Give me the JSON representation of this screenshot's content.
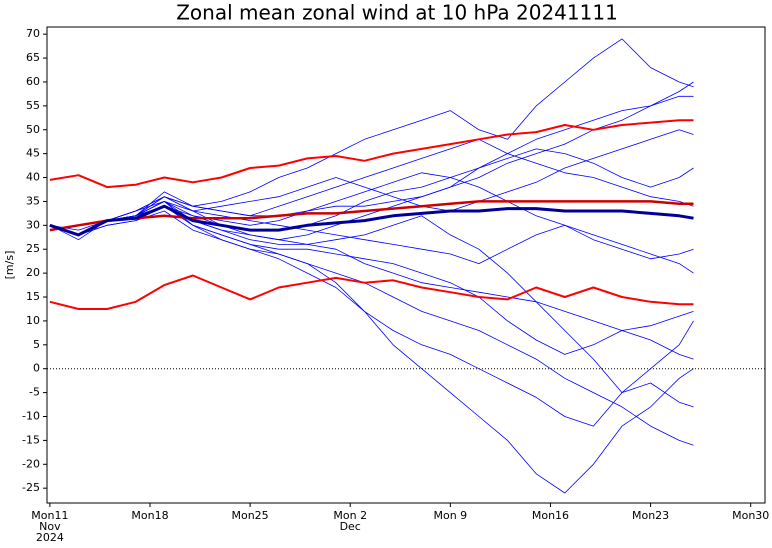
{
  "chart_data": {
    "type": "line",
    "title": "Zonal mean zonal wind at 10 hPa 20241111",
    "ylabel": "[m/s]",
    "x": [
      0,
      2,
      4,
      6,
      8,
      10,
      12,
      14,
      16,
      18,
      20,
      22,
      24,
      26,
      28,
      30,
      32,
      34,
      36,
      38,
      40,
      42,
      44,
      45
    ],
    "xlim": [
      -0.2,
      50
    ],
    "xticks": [
      {
        "value": 0,
        "label": [
          "Mon11",
          "Nov",
          "2024"
        ]
      },
      {
        "value": 7,
        "label": [
          "Mon18"
        ]
      },
      {
        "value": 14,
        "label": [
          "Mon25"
        ]
      },
      {
        "value": 21,
        "label": [
          "Mon 2",
          "Dec"
        ]
      },
      {
        "value": 28,
        "label": [
          "Mon 9"
        ]
      },
      {
        "value": 35,
        "label": [
          "Mon16"
        ]
      },
      {
        "value": 42,
        "label": [
          "Mon23"
        ]
      },
      {
        "value": 49,
        "label": [
          "Mon30"
        ]
      }
    ],
    "ylim": [
      -28.1,
      71.5
    ],
    "yticks": [
      -25,
      -20,
      -15,
      -10,
      -5,
      0,
      5,
      10,
      15,
      20,
      25,
      30,
      35,
      40,
      45,
      50,
      55,
      60,
      65,
      70
    ],
    "hline": 0,
    "series": [
      {
        "color": "#0000ff",
        "linewidth": 0.8,
        "values": [
          30,
          28,
          31,
          32,
          36,
          33,
          30,
          28,
          27,
          28,
          30,
          32,
          34,
          36,
          38,
          40,
          43,
          45,
          47,
          50,
          52,
          55,
          58,
          60
        ]
      },
      {
        "color": "#0000ff",
        "linewidth": 0.8,
        "values": [
          30,
          27,
          31,
          33,
          35,
          30,
          27,
          25,
          24,
          22,
          20,
          18,
          15,
          12,
          10,
          8,
          5,
          2,
          -2,
          -5,
          -8,
          -12,
          -15,
          -16
        ]
      },
      {
        "color": "#0000ff",
        "linewidth": 0.8,
        "values": [
          30,
          28,
          31,
          32,
          37,
          34,
          33,
          32,
          34,
          36,
          38,
          40,
          42,
          44,
          46,
          48,
          45,
          43,
          41,
          40,
          38,
          36,
          35,
          34
        ]
      },
      {
        "color": "#0000ff",
        "linewidth": 0.8,
        "values": [
          30,
          28,
          30,
          31,
          34,
          30,
          28,
          26,
          24,
          22,
          18,
          12,
          5,
          0,
          -5,
          -10,
          -15,
          -22,
          -26,
          -20,
          -12,
          -8,
          -2,
          0
        ]
      },
      {
        "color": "#0000ff",
        "linewidth": 0.8,
        "values": [
          30,
          29,
          31,
          33,
          36,
          34,
          35,
          37,
          40,
          42,
          45,
          48,
          50,
          52,
          54,
          50,
          48,
          55,
          60,
          65,
          69,
          63,
          60,
          59
        ]
      },
      {
        "color": "#0000ff",
        "linewidth": 0.8,
        "values": [
          30,
          28,
          31,
          32,
          35,
          31,
          29,
          28,
          27,
          26,
          25,
          22,
          20,
          18,
          17,
          16,
          15,
          14,
          12,
          10,
          8,
          9,
          11,
          12
        ]
      },
      {
        "color": "#0000ff",
        "linewidth": 0.8,
        "values": [
          30,
          28,
          30,
          31,
          33,
          29,
          27,
          25,
          23,
          20,
          17,
          12,
          8,
          5,
          3,
          0,
          -3,
          -6,
          -10,
          -12,
          -5,
          0,
          5,
          10
        ]
      },
      {
        "color": "#0000ff",
        "linewidth": 0.8,
        "values": [
          30,
          28,
          31,
          32,
          34,
          32,
          31,
          30,
          31,
          33,
          35,
          37,
          39,
          41,
          40,
          42,
          44,
          46,
          45,
          43,
          40,
          38,
          40,
          42
        ]
      },
      {
        "color": "#0000ff",
        "linewidth": 0.8,
        "values": [
          30,
          28,
          31,
          32,
          35,
          33,
          32,
          31,
          30,
          29,
          28,
          27,
          26,
          25,
          24,
          22,
          25,
          28,
          30,
          28,
          26,
          24,
          22,
          20
        ]
      },
      {
        "color": "#0000ff",
        "linewidth": 0.8,
        "values": [
          30,
          28,
          31,
          32,
          36,
          33,
          34,
          35,
          36,
          38,
          40,
          38,
          36,
          34,
          33,
          35,
          37,
          39,
          42,
          44,
          46,
          48,
          50,
          49
        ]
      },
      {
        "color": "#0000ff",
        "linewidth": 0.8,
        "values": [
          30,
          28,
          31,
          32,
          34,
          30,
          28,
          26,
          25,
          25,
          24,
          23,
          22,
          20,
          18,
          15,
          10,
          6,
          3,
          5,
          8,
          6,
          3,
          2
        ]
      },
      {
        "color": "#0000ff",
        "linewidth": 0.8,
        "values": [
          30,
          28,
          31,
          32,
          35,
          32,
          30,
          29,
          29,
          30,
          32,
          35,
          37,
          38,
          40,
          38,
          35,
          32,
          30,
          27,
          25,
          23,
          24,
          25
        ]
      },
      {
        "color": "#0000ff",
        "linewidth": 0.8,
        "values": [
          30,
          28,
          31,
          33,
          36,
          34,
          33,
          32,
          32,
          33,
          34,
          34,
          35,
          36,
          38,
          42,
          45,
          48,
          50,
          52,
          54,
          55,
          57,
          57
        ]
      },
      {
        "color": "#0000ff",
        "linewidth": 0.8,
        "values": [
          30,
          28,
          31,
          32,
          34,
          31,
          29,
          27,
          26,
          26,
          27,
          28,
          30,
          32,
          28,
          25,
          20,
          14,
          8,
          2,
          -5,
          -3,
          -7,
          -8
        ]
      },
      {
        "color": "#ff0000",
        "linewidth": 2,
        "values": [
          39.5,
          40.5,
          38,
          38.5,
          40,
          39,
          40,
          42,
          42.5,
          44,
          44.5,
          43.5,
          45,
          46,
          47,
          48,
          49,
          49.5,
          51,
          50,
          51,
          51.5,
          52,
          52
        ]
      },
      {
        "color": "#cc0000",
        "linewidth": 2.5,
        "values": [
          29,
          30,
          31,
          31.5,
          32,
          31.5,
          31.5,
          31.5,
          32,
          32.5,
          32.5,
          33,
          33.5,
          34,
          34.5,
          35,
          35,
          35,
          35,
          35,
          35,
          35,
          34.5,
          34.5
        ]
      },
      {
        "color": "#ff0000",
        "linewidth": 2,
        "values": [
          14,
          12.5,
          12.5,
          14,
          17.5,
          19.5,
          17,
          14.5,
          17,
          18,
          19,
          18,
          18.5,
          17,
          16,
          15,
          14.5,
          17,
          15,
          17,
          15,
          14,
          13.5,
          13.5
        ]
      },
      {
        "color": "#000099",
        "linewidth": 3,
        "values": [
          30,
          28,
          31,
          31.5,
          34,
          31,
          30,
          29,
          29,
          30,
          30.5,
          31,
          32,
          32.5,
          33,
          33,
          33.5,
          33.5,
          33,
          33,
          33,
          32.5,
          32,
          31.5
        ]
      }
    ]
  }
}
